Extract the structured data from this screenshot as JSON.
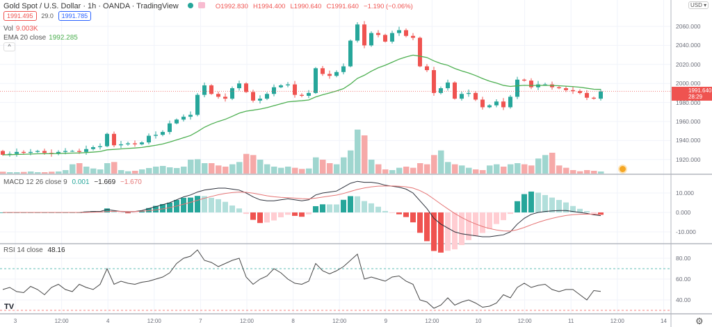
{
  "header": {
    "title": "Gold Spot / U.S. Dollar · 1h · OANDA · TradingView",
    "open": "O1992.830",
    "high": "H1994.400",
    "low": "L1990.640",
    "close": "C1991.640",
    "change": "−1.190 (−0.06%)",
    "sell": "1991.495",
    "spread": "29.0",
    "buy": "1991.785",
    "vol_label": "Vol",
    "vol_value": "9.003K",
    "ema_label": "EMA 20 close",
    "ema_value": "1992.285",
    "collapse": "^"
  },
  "currency": "USD ▾",
  "price_badge": {
    "price": "1991.640",
    "countdown": "28:29"
  },
  "colors": {
    "up": "#26a69a",
    "down": "#ef5350",
    "vol_up": "#9fd6cf",
    "vol_down": "#f6a9a8",
    "ema": "#4caf50",
    "macd": "#2a2e39",
    "signal": "#e57373"
  },
  "macd_legend": {
    "label": "MACD 12 26 close 9",
    "hist": "0.001",
    "macd": "−1.669",
    "signal": "−1.670"
  },
  "rsi_legend": {
    "label": "RSI 14 close",
    "value": "48.16"
  },
  "chart_data": {
    "type": "candlestick",
    "title": "Gold Spot / U.S. Dollar 1h",
    "price_ticks": [
      "2060.000",
      "2040.000",
      "2020.000",
      "2000.000",
      "1980.000",
      "1960.000",
      "1940.000",
      "1920.000"
    ],
    "price_tick_values": [
      2060,
      2040,
      2020,
      2000,
      1980,
      1960,
      1940,
      1920
    ],
    "ylim": [
      1907,
      2076
    ],
    "time_labels": [
      "3",
      "12:00",
      "4",
      "12:00",
      "7",
      "12:00",
      "8",
      "12:00",
      "9",
      "12:00",
      "10",
      "12:00",
      "11",
      "12:00",
      "14"
    ],
    "close": [
      1925,
      1926,
      1928,
      1927,
      1928,
      1929,
      1927,
      1926,
      1928,
      1929,
      1929,
      1928,
      1931,
      1933,
      1934,
      1947,
      1935,
      1936,
      1937,
      1936,
      1938,
      1945,
      1946,
      1949,
      1958,
      1962,
      1965,
      1967,
      1988,
      1998,
      1989,
      1986,
      1984,
      1995,
      2000,
      1991,
      1982,
      1984,
      1989,
      1996,
      1998,
      1999,
      1988,
      1987,
      1990,
      2016,
      2010,
      2008,
      2012,
      2018,
      2045,
      2062,
      2040,
      2053,
      2051,
      2044,
      2053,
      2056,
      2050,
      2048,
      2018,
      2014,
      1990,
      1995,
      2001,
      1984,
      1989,
      1990,
      1983,
      1975,
      1977,
      1981,
      1975,
      1986,
      2004,
      2003,
      1996,
      1999,
      1999,
      1996,
      1995,
      1993,
      1992,
      1990,
      1985,
      1984,
      1991.64
    ],
    "volume_k": [
      8,
      6,
      6,
      7,
      9,
      6,
      6,
      8,
      9,
      15,
      40,
      45,
      30,
      22,
      18,
      45,
      50,
      15,
      10,
      12,
      18,
      24,
      30,
      33,
      27,
      24,
      30,
      60,
      62,
      45,
      45,
      35,
      30,
      40,
      50,
      85,
      80,
      60,
      40,
      30,
      25,
      30,
      25,
      20,
      22,
      70,
      60,
      45,
      40,
      70,
      100,
      190,
      165,
      60,
      40,
      18,
      15,
      25,
      30,
      25,
      45,
      40,
      80,
      100,
      50,
      40,
      35,
      25,
      18,
      15,
      35,
      40,
      30,
      40,
      45,
      40,
      35,
      65,
      80,
      90,
      35,
      25,
      15,
      10,
      15,
      12,
      9
    ],
    "ema_period": 20,
    "macd": [
      0,
      0,
      0,
      0,
      0,
      0,
      0,
      0,
      0,
      0,
      0,
      0,
      0.3,
      0.5,
      0.5,
      1.5,
      1,
      0.5,
      0.3,
      0.5,
      1,
      2,
      3,
      4,
      5,
      6.5,
      8,
      9,
      10.5,
      11.5,
      12,
      12.5,
      12.5,
      12,
      11.5,
      10,
      8,
      6.5,
      6,
      6,
      6.5,
      7,
      6.5,
      6,
      6.5,
      9,
      10,
      10.5,
      11,
      13,
      15,
      16,
      15.5,
      15.5,
      15,
      14,
      13.5,
      13,
      12,
      10,
      6,
      2,
      -3,
      -6,
      -8,
      -10,
      -11,
      -11.5,
      -12,
      -12.5,
      -12.5,
      -12,
      -11.5,
      -10,
      -6,
      -3,
      -1,
      0,
      0.5,
      0.8,
      1,
      1,
      0.5,
      0,
      -0.5,
      -1.2,
      -1.669
    ],
    "signal_period": 9,
    "macd_ticks": [
      "10.000",
      "0.000",
      "-10.000"
    ],
    "macd_tick_values": [
      10,
      0,
      -10
    ],
    "macd_ylim": [
      -15,
      20
    ],
    "rsi": [
      50,
      52,
      48,
      47,
      53,
      50,
      45,
      52,
      55,
      50,
      48,
      55,
      52,
      50,
      55,
      70,
      55,
      58,
      56,
      55,
      57,
      58,
      60,
      62,
      66,
      75,
      80,
      82,
      88,
      78,
      76,
      72,
      75,
      78,
      80,
      62,
      55,
      60,
      63,
      70,
      66,
      60,
      56,
      55,
      58,
      75,
      68,
      65,
      68,
      72,
      78,
      84,
      60,
      62,
      60,
      58,
      62,
      63,
      58,
      55,
      40,
      38,
      32,
      35,
      42,
      35,
      38,
      40,
      37,
      33,
      34,
      37,
      45,
      42,
      52,
      56,
      52,
      54,
      55,
      50,
      48,
      50,
      50,
      45,
      40,
      49,
      48.16
    ],
    "rsi_ticks": [
      "80.00",
      "60.00",
      "40.00"
    ],
    "rsi_tick_values": [
      80,
      60,
      40
    ],
    "rsi_bands": [
      70,
      30
    ],
    "rsi_ylim": [
      25,
      92
    ]
  }
}
